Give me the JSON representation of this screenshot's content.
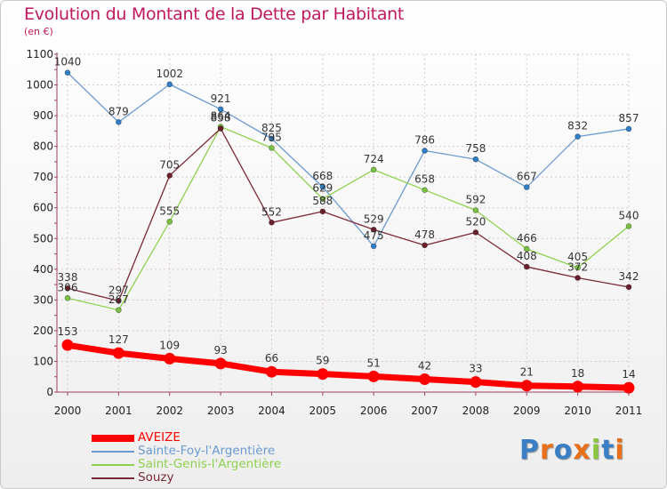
{
  "header": {
    "title": "Evolution du Montant de la Dette par Habitant",
    "subtitle": "(en €)"
  },
  "colors": {
    "title": "#c0185f",
    "grid": "#d9c8d0",
    "axis": "#a04060"
  },
  "logo": {
    "letters": [
      {
        "ch": "P",
        "color": "#3a7fc4"
      },
      {
        "ch": "r",
        "color": "#e8701a"
      },
      {
        "ch": "o",
        "color": "#3a7fc4"
      },
      {
        "ch": "x",
        "color": "#e8701a"
      },
      {
        "ch": "i",
        "color": "#8cc63f"
      },
      {
        "ch": "t",
        "color": "#3a7fc4"
      },
      {
        "ch": "i",
        "color": "#e8701a"
      }
    ]
  },
  "chart_data": {
    "type": "line",
    "title": "Evolution du Montant de la Dette par Habitant",
    "subtitle": "(en €)",
    "x": [
      "2000",
      "2001",
      "2002",
      "2003",
      "2004",
      "2005",
      "2006",
      "2007",
      "2008",
      "2009",
      "2010",
      "2011"
    ],
    "ylim": [
      0,
      1100
    ],
    "yticks": [
      0,
      100,
      200,
      300,
      400,
      500,
      600,
      700,
      800,
      900,
      1000,
      1100
    ],
    "grid": true,
    "legend_position": "bottom-left",
    "series": [
      {
        "name": "AVEIZE",
        "color": "#ff0000",
        "values": [
          153,
          127,
          109,
          93,
          66,
          59,
          51,
          42,
          33,
          21,
          18,
          14
        ],
        "labels": [
          "153",
          "127",
          "109",
          "93",
          "66",
          "59",
          "51",
          "42",
          "33",
          "21",
          "18",
          "14"
        ],
        "highlight": true
      },
      {
        "name": "Sainte-Foy-l'Argentière",
        "color": "#6b9bd1",
        "marker": "#2f7ec8",
        "values": [
          1040,
          879,
          1002,
          921,
          825,
          668,
          475,
          786,
          758,
          667,
          832,
          857
        ],
        "labels": [
          "1040",
          "879",
          "1002",
          "921",
          "825",
          "668",
          "475",
          "786",
          "758",
          "667",
          "832",
          "857"
        ]
      },
      {
        "name": "Saint-Genis-l'Argentière",
        "color": "#8fd14f",
        "marker": "#7ac142",
        "values": [
          306,
          267,
          555,
          864,
          795,
          629,
          724,
          658,
          592,
          466,
          405,
          540
        ],
        "labels": [
          "306",
          "267",
          "555",
          "864",
          "795",
          "629",
          "724",
          "658",
          "592",
          "466",
          "405",
          "540"
        ]
      },
      {
        "name": "Souzy",
        "color": "#7a2a35",
        "marker": "#6b1f2a",
        "values": [
          338,
          297,
          705,
          858,
          552,
          588,
          529,
          478,
          520,
          408,
          372,
          342
        ],
        "labels": [
          "338",
          "297",
          "705",
          "858",
          "552",
          "588",
          "529",
          "478",
          "520",
          "408",
          "372",
          "342"
        ]
      }
    ]
  }
}
